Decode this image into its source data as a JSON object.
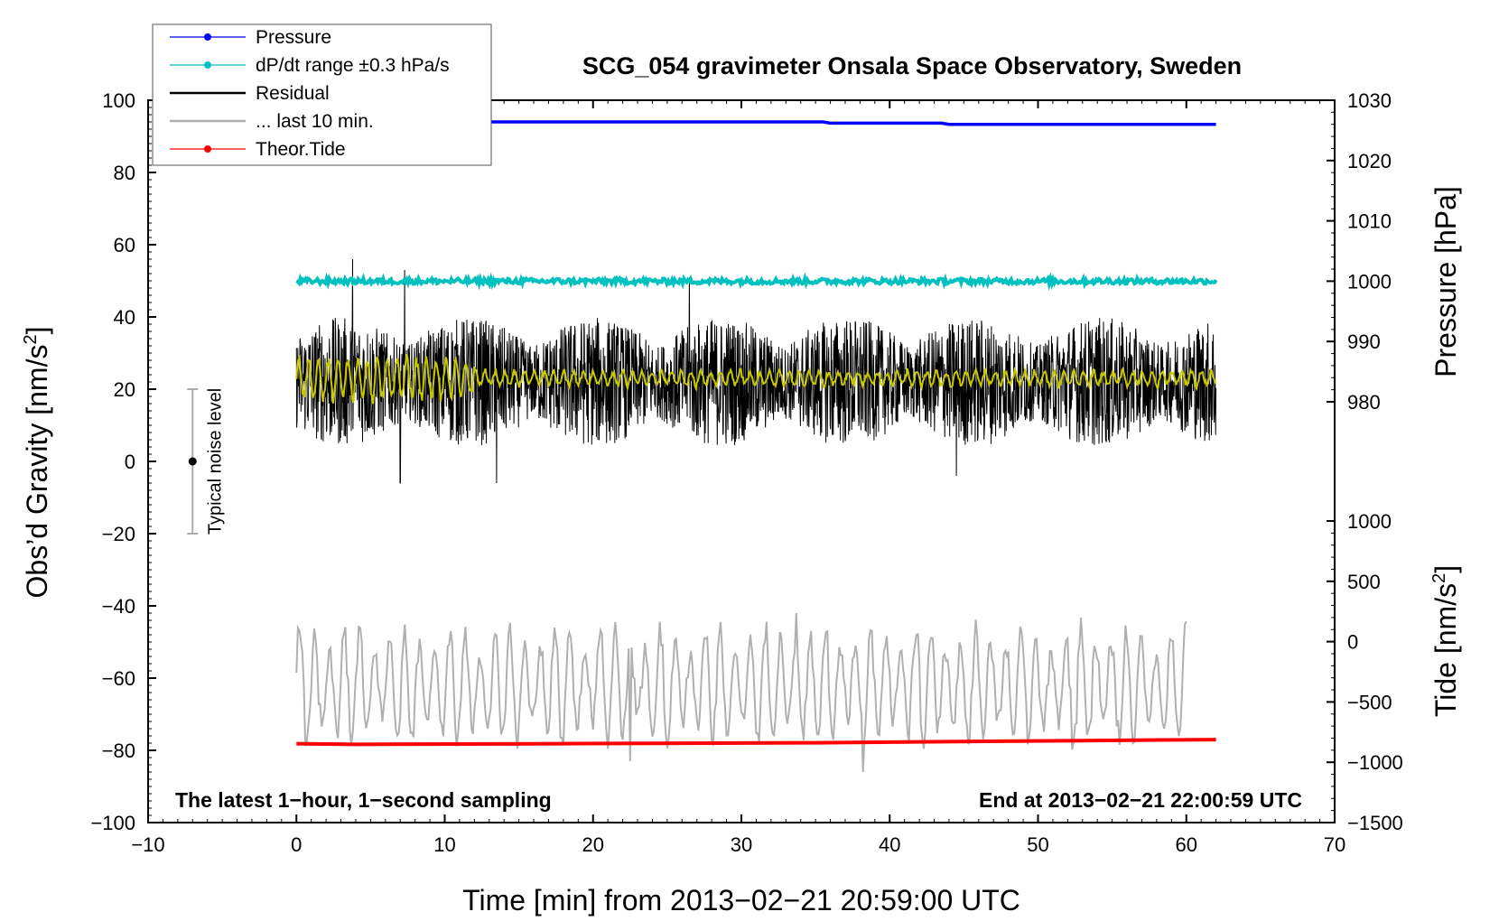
{
  "chart_data": {
    "type": "line",
    "title": "SCG_054 gravimeter Onsala Space Observatory, Sweden",
    "xlabel": "Time [min] from 2013−02−21 20:59:00 UTC",
    "ylabel_left": "Obs’d Gravity [nm/s",
    "ylabel_left_sup": "2",
    "ylabel_left_end": "]",
    "ylabel_right_top": "Pressure [hPa]",
    "ylabel_right_bottom": "Tide [nm/s",
    "ylabel_right_bottom_sup": "2",
    "ylabel_right_bottom_end": "]",
    "xlim": [
      -10,
      70
    ],
    "ylim_left": [
      -100,
      100
    ],
    "pressure_axis": {
      "range": [
        980,
        1030
      ],
      "ticks": [
        980,
        990,
        1000,
        1010,
        1020,
        1030
      ]
    },
    "tide_axis": {
      "range": [
        -1500,
        1000
      ],
      "ticks": [
        -1500,
        -1000,
        -500,
        0,
        500,
        1000
      ]
    },
    "x_ticks": [
      -10,
      0,
      10,
      20,
      30,
      40,
      50,
      60,
      70
    ],
    "x_tick_labels": [
      "−10",
      "0",
      "10",
      "20",
      "30",
      "40",
      "50",
      "60",
      "70"
    ],
    "y_ticks_left": [
      -100,
      -80,
      -60,
      -40,
      -20,
      0,
      20,
      40,
      60,
      80,
      100
    ],
    "y_tick_labels_left": [
      "−100",
      "−80",
      "−60",
      "−40",
      "−20",
      "0",
      "20",
      "40",
      "60",
      "80",
      "100"
    ],
    "pressure_tick_labels": [
      "980",
      "990",
      "1000",
      "1010",
      "1020",
      "1030"
    ],
    "tide_tick_labels": [
      "−1500",
      "−1000",
      "−500",
      "0",
      "500",
      "1000"
    ],
    "series": [
      {
        "name": "Pressure",
        "color": "#0000ff",
        "axis": "pressure",
        "x": [
          0,
          35.5,
          36,
          43.5,
          44,
          62
        ],
        "values": [
          1026.4,
          1026.4,
          1026.2,
          1026.2,
          1026.0,
          1026.0
        ]
      },
      {
        "name": "dP/dt range ±0.3 hPa/s",
        "color": "#00c0c0",
        "axis": "pressure",
        "x": [
          0,
          62
        ],
        "values": [
          1000,
          1000
        ],
        "noise_amplitude": 0.45
      },
      {
        "name": "Residual",
        "color": "#000000",
        "axis": "gravity",
        "x_range": [
          0,
          62
        ],
        "mean": 22,
        "noise_amplitude": 18,
        "peaks": [
          [
            3.8,
            56
          ],
          [
            7.3,
            53
          ],
          [
            26.5,
            51
          ],
          [
            7.0,
            -6
          ],
          [
            13.5,
            -6
          ],
          [
            44.5,
            -4
          ]
        ]
      },
      {
        "name": "... last 10 min.",
        "color": "#b0b0b0",
        "axis": "gravity",
        "x_range": [
          0,
          60
        ],
        "mean": -62,
        "noise_amplitude": 18,
        "extremes": [
          [
            33.7,
            -42
          ],
          [
            38.2,
            -86
          ],
          [
            22.5,
            -83
          ]
        ]
      },
      {
        "name": "Theor.Tide",
        "color": "#ff0000",
        "axis": "tide",
        "x": [
          0,
          4,
          18,
          35,
          53,
          62
        ],
        "values": [
          -846,
          -852,
          -846,
          -838,
          -820,
          -812
        ]
      },
      {
        "name": "",
        "color": "#c8c800",
        "axis": "gravity",
        "x_range": [
          0,
          62
        ],
        "mean": 23,
        "noise_amplitude": 4
      }
    ],
    "legend_position": "top-left",
    "annotations": {
      "noise_label": "Typical noise level",
      "noise_bar": {
        "x": -7,
        "center": 0,
        "low": -20,
        "high": 20
      },
      "bottom_left": "The latest 1−hour, 1−second sampling",
      "bottom_right": "End at 2013−02−21 22:00:59 UTC"
    }
  }
}
